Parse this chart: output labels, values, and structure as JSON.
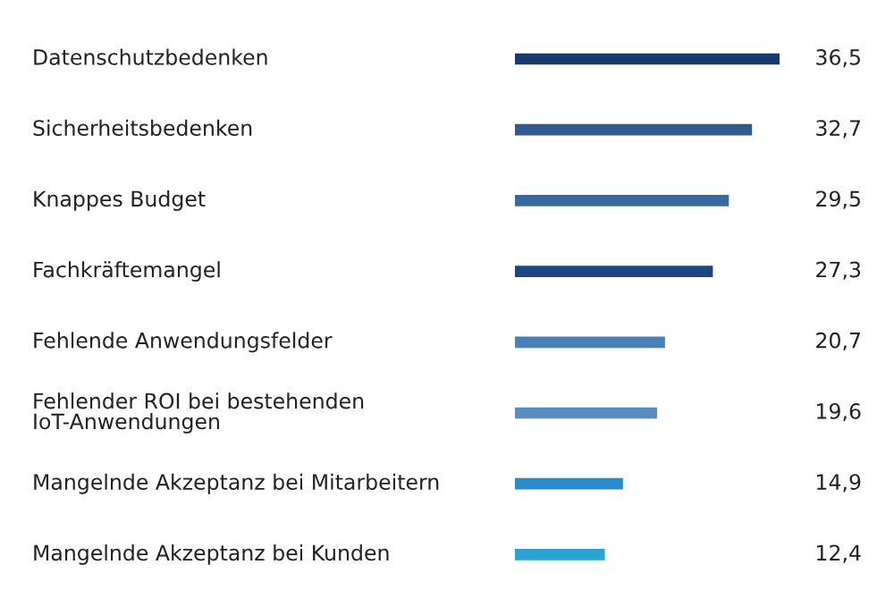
{
  "chart_data": {
    "type": "bar",
    "orientation": "horizontal",
    "value_labels": [
      "36,5",
      "32,7",
      "29,5",
      "27,3",
      "20,7",
      "19,6",
      "14,9",
      "12,4"
    ],
    "categories": [
      "Datenschutzbedenken",
      "Sicherheitsbedenken",
      "Knappes Budget",
      "Fachkräftemangel",
      "Fehlende Anwendungsfelder",
      "Fehlender ROI bei bestehenden\nIoT-Anwendungen",
      "Mangelnde Akzeptanz bei Mitarbeitern",
      "Mangelnde Akzeptanz bei Kunden"
    ],
    "values": [
      36.5,
      32.7,
      29.5,
      27.3,
      20.7,
      19.6,
      14.9,
      12.4
    ],
    "colors": [
      "#163a6e",
      "#2e5a8e",
      "#3a689c",
      "#1d4780",
      "#4a80b8",
      "#5a8cc0",
      "#2a8cc8",
      "#2aa2d2"
    ]
  }
}
